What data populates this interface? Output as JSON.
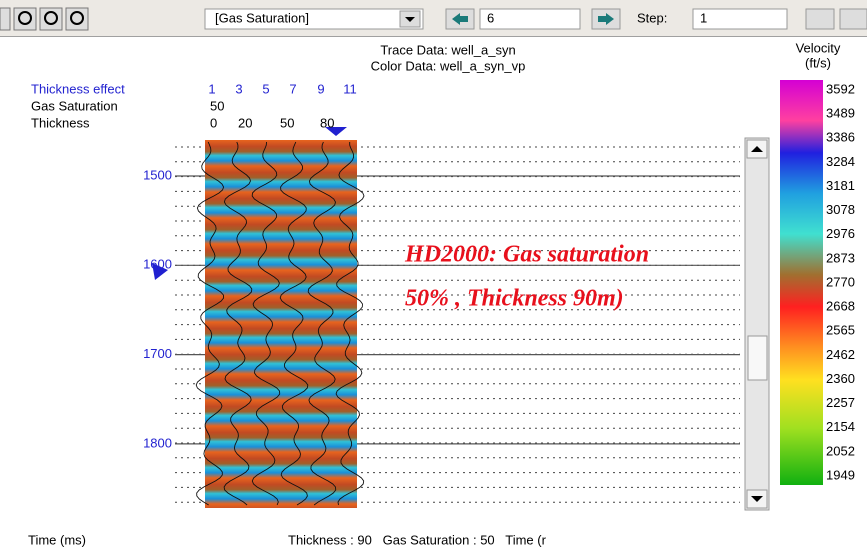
{
  "toolbar": {
    "dropdown": "[Gas Saturation]",
    "value_field": "6",
    "step_label": "Step:",
    "step_field": "1"
  },
  "header": {
    "trace_data": "Trace Data: well_a_syn",
    "color_data": "Color Data: well_a_syn_vp"
  },
  "parameters": {
    "rows": [
      {
        "label": "Thickness effect",
        "values": [
          1,
          3,
          5,
          7,
          9,
          11
        ]
      },
      {
        "label": "Gas Saturation",
        "values": [
          50
        ]
      },
      {
        "label": "Thickness",
        "values": [
          0,
          20,
          50,
          80
        ]
      }
    ]
  },
  "time_axis": {
    "labels": [
      1500,
      1600,
      1700,
      1800
    ]
  },
  "annotation": {
    "lines": [
      "HD2000: Gas saturation",
      "50% , Thickness 90m)"
    ]
  },
  "color_bar": {
    "title": [
      "Velocity",
      "(ft/s)"
    ],
    "labels": [
      3592,
      3489,
      3386,
      3284,
      3181,
      3078,
      2976,
      2873,
      2770,
      2668,
      2565,
      2462,
      2360,
      2257,
      2154,
      2052,
      1949
    ]
  },
  "status": {
    "axis_label": "Time (ms)",
    "readout": "Thickness : 90   Gas Saturation : 50   Time (r"
  }
}
